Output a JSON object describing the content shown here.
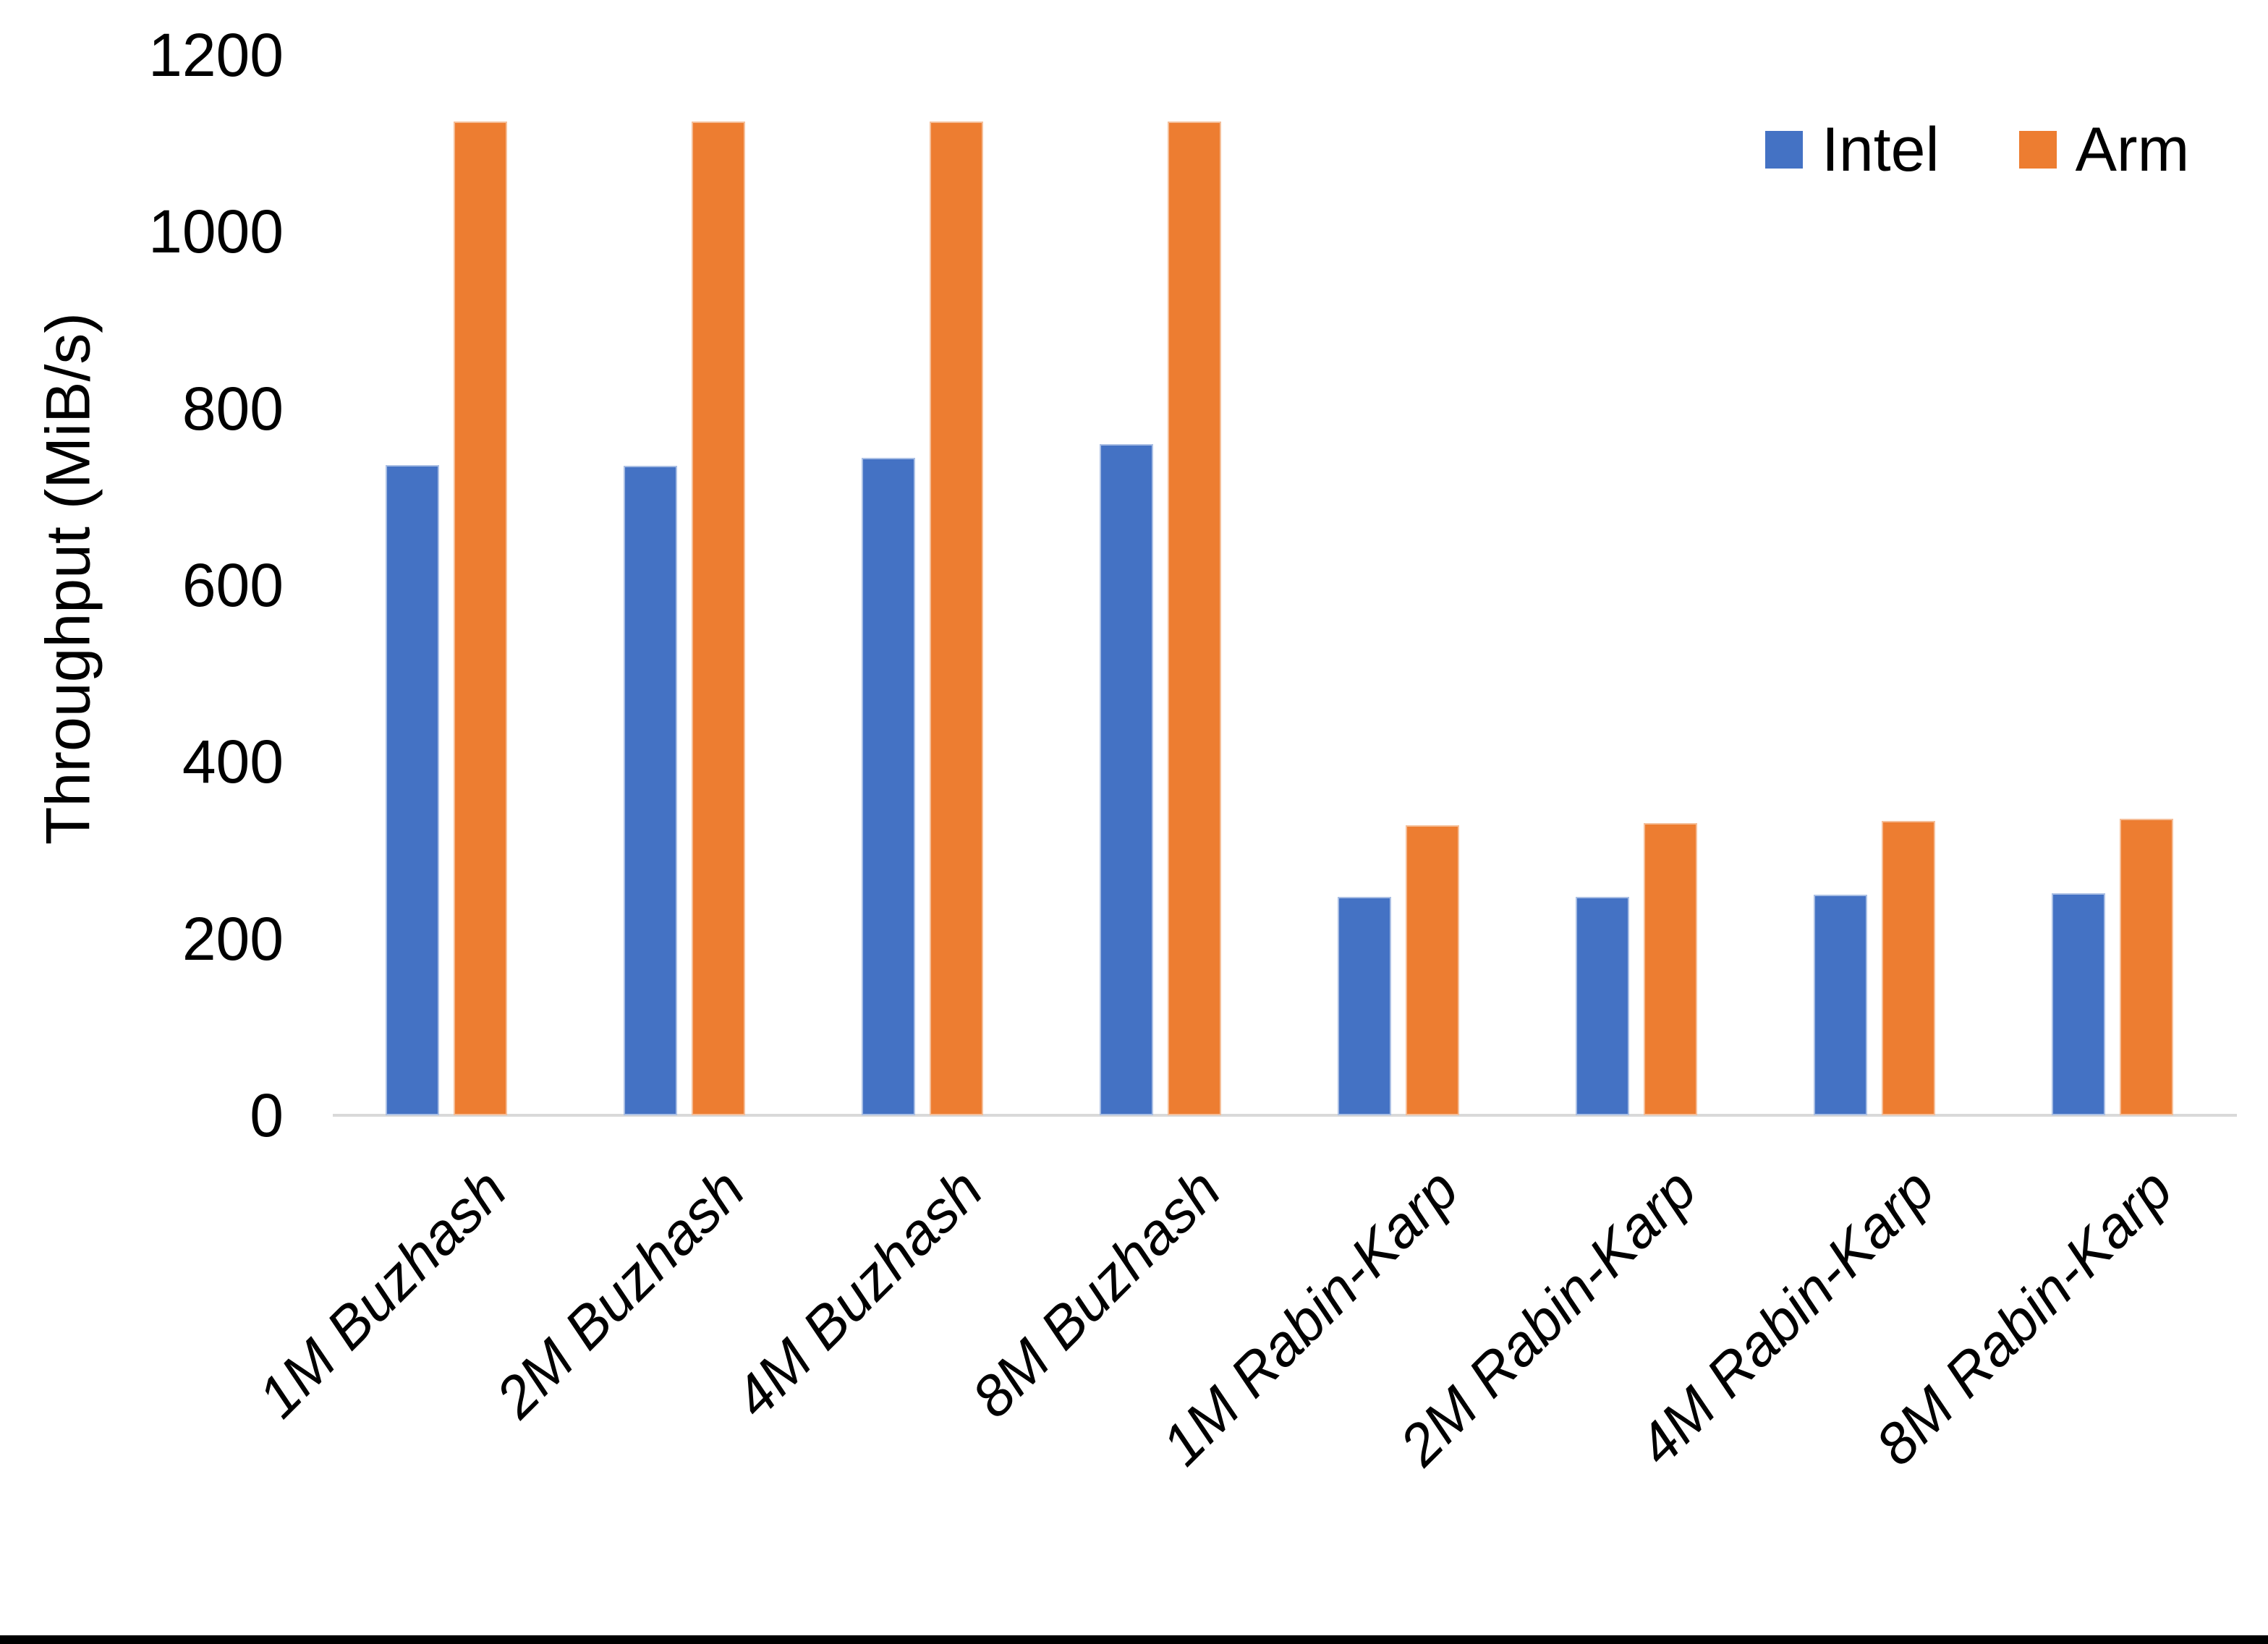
{
  "chart_data": {
    "type": "bar",
    "title": "",
    "xlabel": "",
    "ylabel": "Throughput (MiB/s)",
    "ylim": [
      0,
      1200
    ],
    "yticks": [
      0,
      200,
      400,
      600,
      800,
      1000,
      1200
    ],
    "grid": false,
    "legend_position": "top-right",
    "categories": [
      "1M Buzhash",
      "2M Buzhash",
      "4M Buzhash",
      "8M Buzhash",
      "1M Rabin-Karp",
      "2M Rabin-Karp",
      "4M Rabin-Karp",
      "8M Rabin-Karp"
    ],
    "series": [
      {
        "name": "Intel",
        "color": "#4472C4",
        "border_color": "#AABFE4",
        "values": [
          736,
          735,
          744,
          760,
          247,
          247,
          250,
          251
        ]
      },
      {
        "name": "Arm",
        "color": "#ED7D31",
        "border_color": "#F5BE98",
        "values": [
          1125,
          1125,
          1125,
          1125,
          328,
          331,
          333,
          336
        ]
      }
    ],
    "axis_line_color": "#D9D9D9",
    "text_color": "#000000"
  },
  "page": {
    "bottom_bar_color": "#000000",
    "background_color": "#FFFFFF"
  }
}
